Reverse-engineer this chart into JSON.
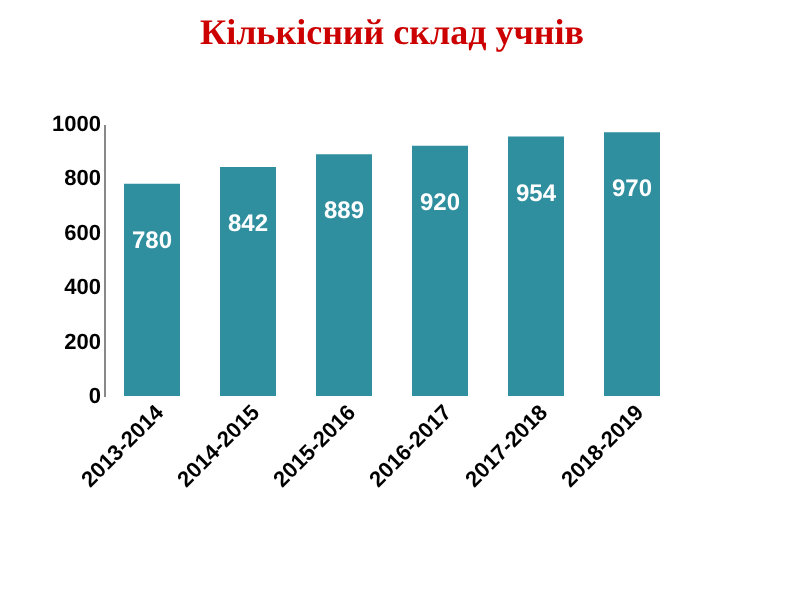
{
  "chart_data": {
    "type": "bar",
    "title": "Кількісний склад учнів",
    "categories": [
      "2013-2014",
      "2014-2015",
      "2015-2016",
      "2016-2017",
      "2017-2018",
      "2018-2019"
    ],
    "values": [
      780,
      842,
      889,
      920,
      954,
      970
    ],
    "color": "#2f8f9f",
    "ylim": [
      0,
      1000
    ],
    "yticks": [
      0,
      200,
      400,
      600,
      800,
      1000
    ],
    "grid": false,
    "data_labels": true
  }
}
